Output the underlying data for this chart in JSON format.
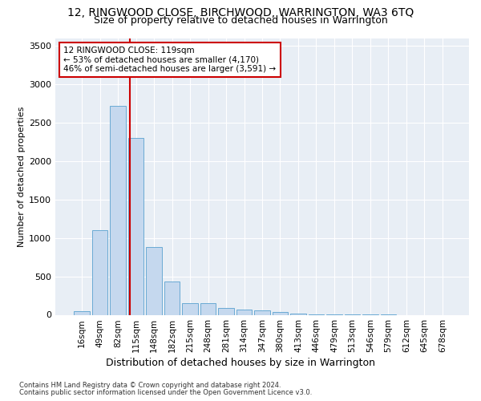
{
  "title": "12, RINGWOOD CLOSE, BIRCHWOOD, WARRINGTON, WA3 6TQ",
  "subtitle": "Size of property relative to detached houses in Warrington",
  "xlabel": "Distribution of detached houses by size in Warrington",
  "ylabel": "Number of detached properties",
  "categories": [
    "16sqm",
    "49sqm",
    "82sqm",
    "115sqm",
    "148sqm",
    "182sqm",
    "215sqm",
    "248sqm",
    "281sqm",
    "314sqm",
    "347sqm",
    "380sqm",
    "413sqm",
    "446sqm",
    "479sqm",
    "513sqm",
    "546sqm",
    "579sqm",
    "612sqm",
    "645sqm",
    "678sqm"
  ],
  "values": [
    50,
    1100,
    2720,
    2300,
    880,
    430,
    155,
    155,
    90,
    65,
    55,
    40,
    15,
    8,
    3,
    2,
    1,
    1,
    0,
    0,
    0
  ],
  "bar_color": "#c5d8ee",
  "bar_edge_color": "#6aaad4",
  "vline_color": "#cc0000",
  "annotation_text": "12 RINGWOOD CLOSE: 119sqm\n← 53% of detached houses are smaller (4,170)\n46% of semi-detached houses are larger (3,591) →",
  "annotation_box_color": "#ffffff",
  "annotation_box_edge": "#cc0000",
  "ylim": [
    0,
    3600
  ],
  "yticks": [
    0,
    500,
    1000,
    1500,
    2000,
    2500,
    3000,
    3500
  ],
  "bg_color": "#e8eef5",
  "footer_line1": "Contains HM Land Registry data © Crown copyright and database right 2024.",
  "footer_line2": "Contains public sector information licensed under the Open Government Licence v3.0.",
  "title_fontsize": 10,
  "subtitle_fontsize": 9,
  "xlabel_fontsize": 9,
  "ylabel_fontsize": 8,
  "annotation_fontsize": 7.5,
  "tick_fontsize": 7.5,
  "footer_fontsize": 6
}
